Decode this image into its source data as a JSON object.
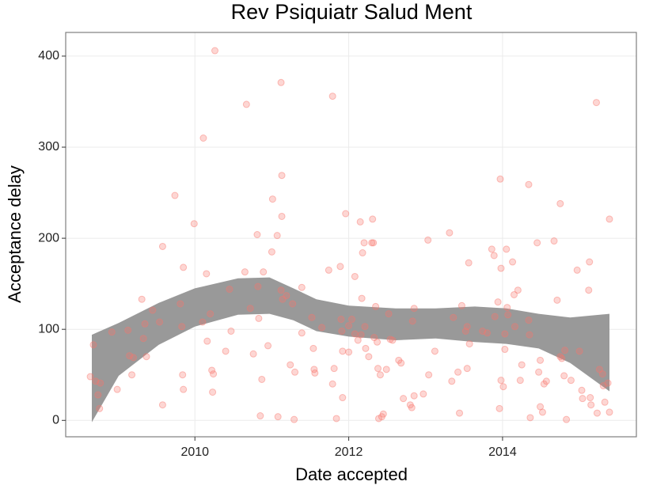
{
  "chart_data": {
    "type": "scatter",
    "title": "Rev Psiquiatr Salud Ment",
    "x_label": "Date accepted",
    "y_label": "Acceptance delay",
    "xlim": [
      2008.32,
      2015.74
    ],
    "ylim": [
      -18,
      426
    ],
    "xticks": [
      2010,
      2012,
      2014
    ],
    "yticks": [
      0,
      100,
      200,
      300,
      400
    ],
    "grid": true,
    "color": "#f8766d",
    "x": [
      2008.64,
      2008.68,
      2008.71,
      2008.74,
      2008.77,
      2008.76,
      2008.92,
      2008.99,
      2009.13,
      2009.15,
      2009.18,
      2009.2,
      2009.31,
      2009.33,
      2009.35,
      2009.37,
      2009.45,
      2009.54,
      2009.58,
      2009.58,
      2009.74,
      2009.81,
      2009.83,
      2009.84,
      2009.85,
      2009.85,
      2009.99,
      2010.1,
      2010.11,
      2010.15,
      2010.16,
      2010.2,
      2010.22,
      2010.23,
      2010.24,
      2010.26,
      2010.4,
      2010.45,
      2010.47,
      2010.65,
      2010.67,
      2010.72,
      2010.76,
      2010.81,
      2010.82,
      2010.83,
      2010.85,
      2010.87,
      2010.89,
      2010.95,
      2011.0,
      2011.01,
      2011.07,
      2011.08,
      2011.12,
      2011.12,
      2011.13,
      2011.13,
      2011.14,
      2011.19,
      2011.24,
      2011.27,
      2011.29,
      2011.3,
      2011.39,
      2011.39,
      2011.52,
      2011.54,
      2011.55,
      2011.56,
      2011.65,
      2011.74,
      2011.79,
      2011.79,
      2011.81,
      2011.84,
      2011.89,
      2011.9,
      2011.91,
      2011.92,
      2011.92,
      2011.96,
      2012.0,
      2012.0,
      2012.04,
      2012.08,
      2012.08,
      2012.12,
      2012.15,
      2012.16,
      2012.17,
      2012.18,
      2012.2,
      2012.21,
      2012.22,
      2012.26,
      2012.3,
      2012.31,
      2012.32,
      2012.33,
      2012.35,
      2012.37,
      2012.38,
      2012.39,
      2012.41,
      2012.43,
      2012.45,
      2012.49,
      2012.52,
      2012.54,
      2012.57,
      2012.65,
      2012.68,
      2012.71,
      2012.8,
      2012.82,
      2012.83,
      2012.85,
      2012.85,
      2012.97,
      2013.03,
      2013.04,
      2013.12,
      2013.31,
      2013.34,
      2013.36,
      2013.42,
      2013.44,
      2013.47,
      2013.52,
      2013.54,
      2013.54,
      2013.56,
      2013.57,
      2013.74,
      2013.8,
      2013.86,
      2013.89,
      2013.9,
      2013.94,
      2013.96,
      2013.97,
      2013.98,
      2013.98,
      2014.01,
      2014.03,
      2014.03,
      2014.05,
      2014.06,
      2014.07,
      2014.13,
      2014.15,
      2014.16,
      2014.2,
      2014.23,
      2014.25,
      2014.34,
      2014.34,
      2014.35,
      2014.36,
      2014.45,
      2014.47,
      2014.49,
      2014.49,
      2014.52,
      2014.54,
      2014.57,
      2014.67,
      2014.71,
      2014.75,
      2014.75,
      2014.77,
      2014.8,
      2014.81,
      2014.83,
      2014.89,
      2014.97,
      2015.0,
      2015.03,
      2015.04,
      2015.12,
      2015.13,
      2015.14,
      2015.15,
      2015.22,
      2015.23,
      2015.26,
      2015.3,
      2015.31,
      2015.33,
      2015.37,
      2015.39,
      2015.39
    ],
    "values": [
      48,
      83,
      43,
      28,
      41,
      13,
      97,
      34,
      99,
      71,
      50,
      69,
      133,
      90,
      106,
      70,
      121,
      108,
      191,
      17,
      247,
      128,
      103,
      50,
      34,
      168,
      216,
      108,
      310,
      161,
      87,
      117,
      55,
      31,
      51,
      406,
      76,
      144,
      98,
      163,
      347,
      123,
      73,
      204,
      147,
      112,
      5,
      45,
      163,
      82,
      185,
      243,
      203,
      4,
      143,
      371,
      224,
      269,
      133,
      137,
      61,
      128,
      1,
      53,
      146,
      96,
      113,
      79,
      56,
      52,
      102,
      165,
      356,
      40,
      57,
      2,
      169,
      111,
      98,
      76,
      25,
      227,
      104,
      75,
      111,
      158,
      95,
      88,
      218,
      94,
      134,
      184,
      195,
      103,
      79,
      70,
      195,
      221,
      195,
      91,
      125,
      86,
      57,
      2,
      50,
      4,
      7,
      56,
      117,
      89,
      88,
      66,
      63,
      24,
      17,
      14,
      109,
      27,
      123,
      29,
      198,
      50,
      76,
      206,
      43,
      113,
      53,
      8,
      126,
      98,
      57,
      103,
      173,
      84,
      98,
      96,
      188,
      181,
      114,
      130,
      13,
      265,
      167,
      44,
      37,
      78,
      95,
      188,
      124,
      116,
      174,
      138,
      103,
      143,
      44,
      61,
      259,
      110,
      94,
      3,
      195,
      53,
      66,
      15,
      9,
      40,
      43,
      197,
      132,
      238,
      70,
      68,
      49,
      77,
      1,
      44,
      165,
      76,
      33,
      24,
      143,
      174,
      25,
      17,
      349,
      8,
      56,
      51,
      38,
      20,
      41,
      9,
      221
    ],
    "band": {
      "color": "#999999",
      "x": [
        2008.66,
        2009.01,
        2009.53,
        2010,
        2010.56,
        2010.97,
        2011.28,
        2011.58,
        2012,
        2012.61,
        2013.13,
        2013.64,
        2014.05,
        2014.47,
        2014.88,
        2015.39
      ],
      "lower": [
        -2,
        49,
        83,
        103,
        116,
        117,
        110,
        98,
        92,
        88,
        90,
        86,
        84,
        79,
        63,
        32
      ],
      "upper": [
        94,
        107,
        129,
        145,
        156,
        157,
        145,
        133,
        126,
        123,
        123,
        125,
        123,
        117,
        113,
        117
      ]
    }
  }
}
